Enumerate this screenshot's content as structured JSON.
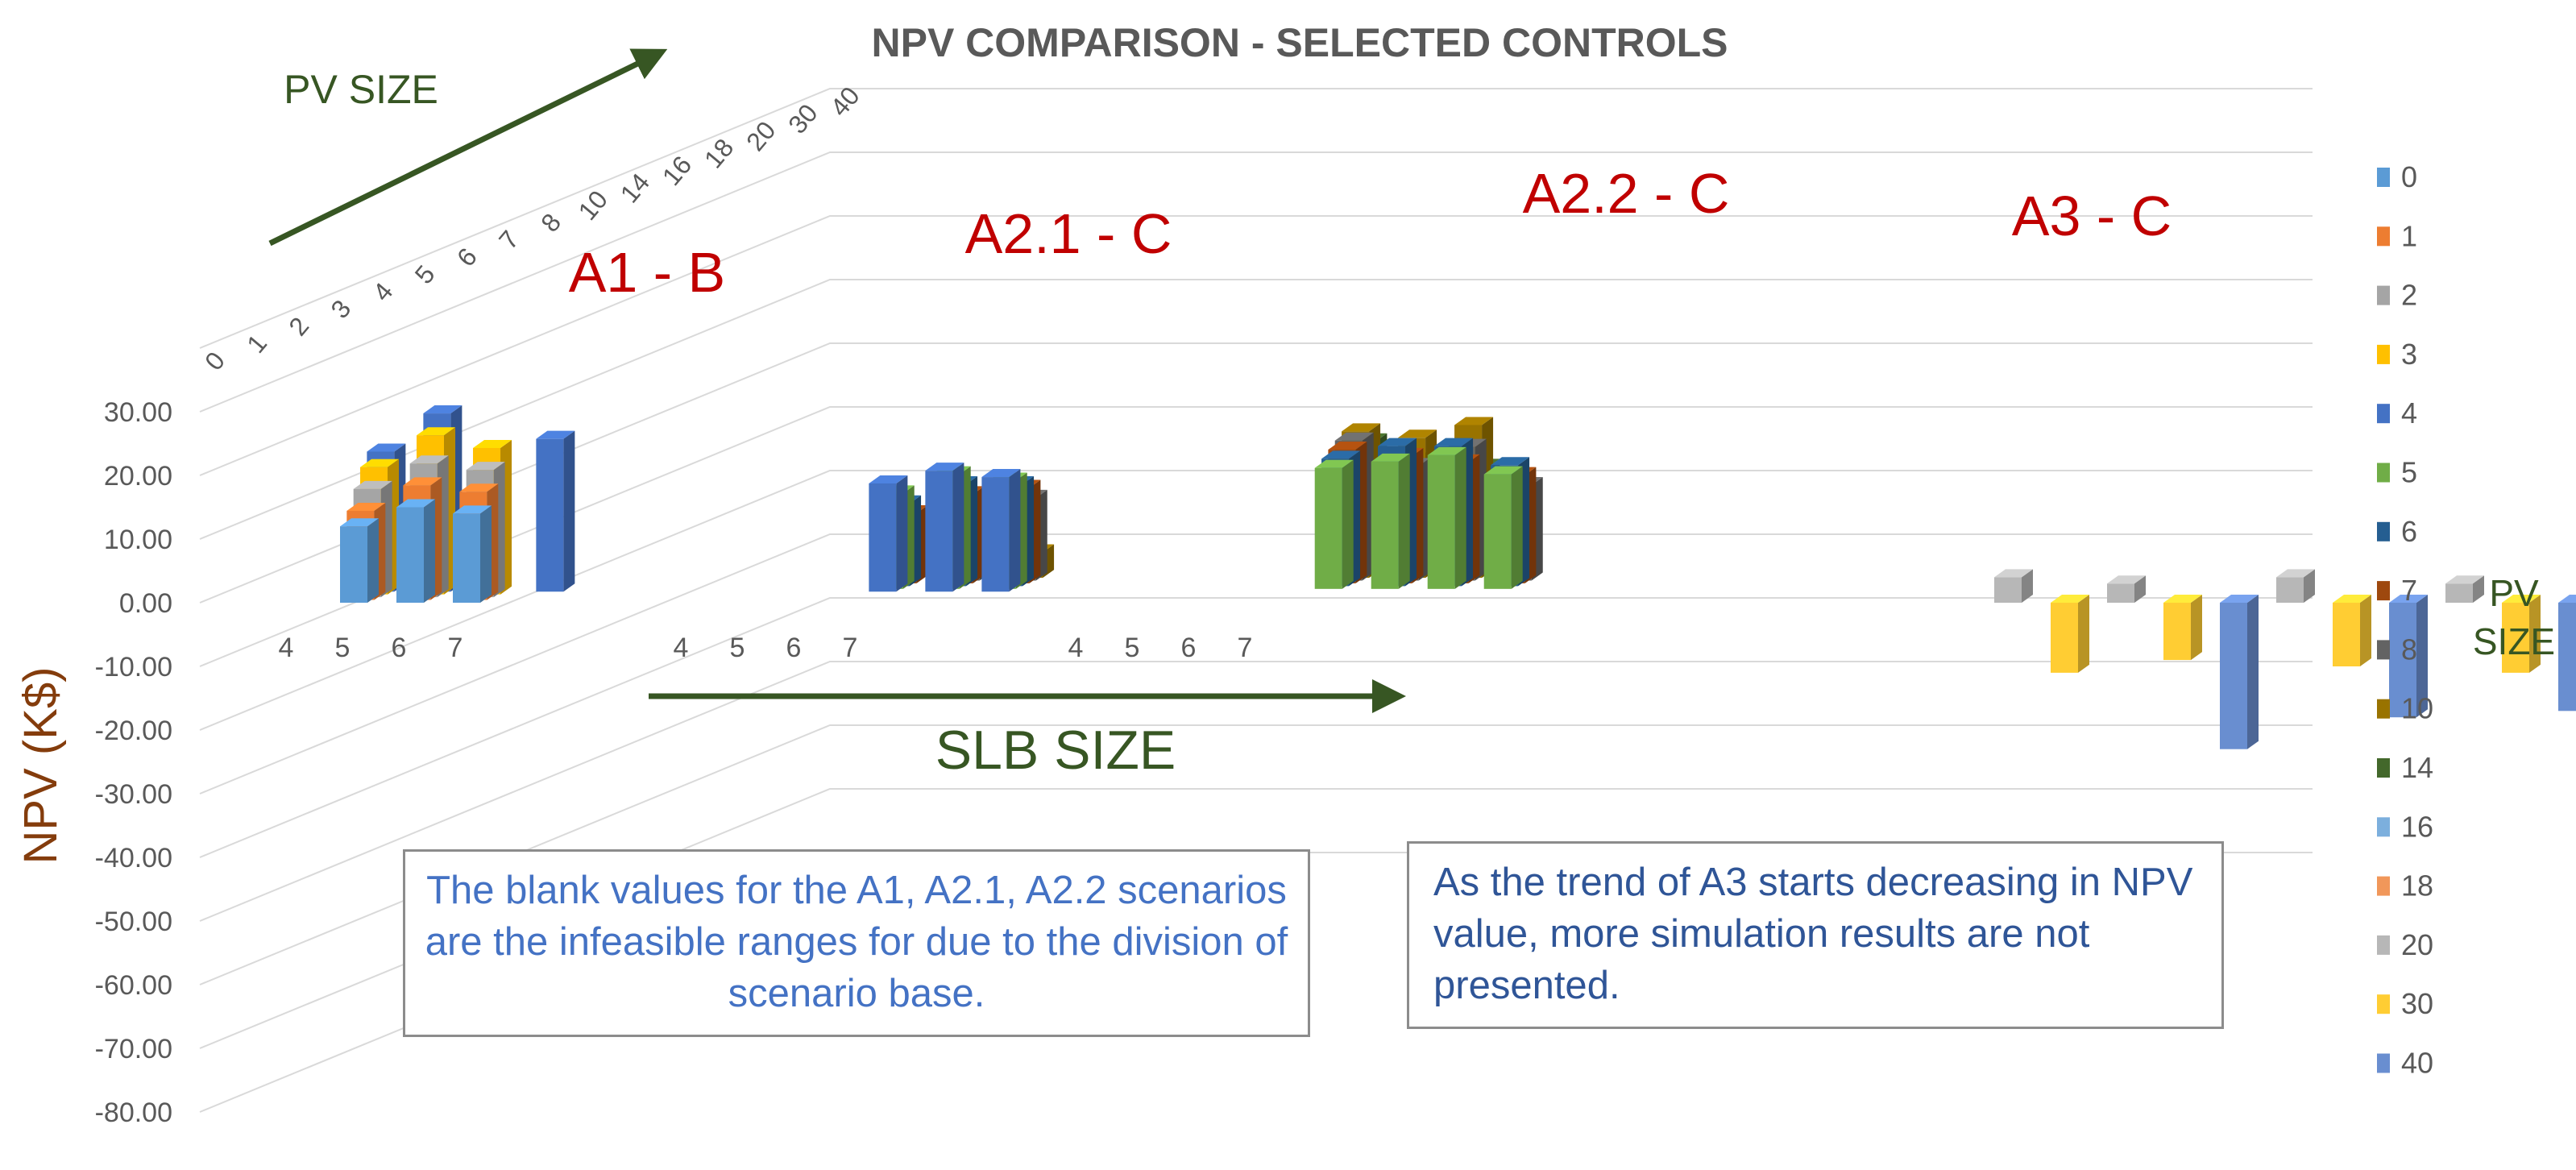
{
  "chart_data": {
    "type": "bar",
    "subtype": "3d-clustered-column",
    "title": "NPV COMPARISON - SELECTED CONTROLS",
    "ylabel": "NPV (K$)",
    "ylim": [
      -80,
      40
    ],
    "yticks": [
      "30.00",
      "20.00",
      "10.00",
      "0.00",
      "-10.00",
      "-20.00",
      "-30.00",
      "-40.00",
      "-50.00",
      "-60.00",
      "-70.00",
      "-80.00"
    ],
    "depth_axis_label": "PV SIZE",
    "depth_ticks": [
      "0",
      "1",
      "2",
      "3",
      "4",
      "5",
      "6",
      "7",
      "8",
      "10",
      "14",
      "16",
      "18",
      "20",
      "30",
      "40"
    ],
    "x_axis_label": "SLB SIZE",
    "legend_title": "PV SIZE",
    "legend_position": "right",
    "colors": {
      "0": "#5b9bd5",
      "1": "#ed7d31",
      "2": "#a5a5a5",
      "3": "#ffc000",
      "4": "#4472c4",
      "5": "#70ad47",
      "6": "#255e91",
      "7": "#9e480e",
      "8": "#636363",
      "10": "#997300",
      "14": "#43682b",
      "16": "#7cafdd",
      "18": "#f1975a",
      "20": "#b7b7b7",
      "30": "#ffcd33",
      "40": "#698ed0"
    },
    "groups": [
      {
        "name": "A1 - B",
        "categories": [
          "4",
          "5",
          "6",
          "7"
        ],
        "bars": [
          {
            "slb": "4",
            "pv": "0",
            "value": 12
          },
          {
            "slb": "4",
            "pv": "1",
            "value": 14
          },
          {
            "slb": "4",
            "pv": "2",
            "value": 17
          },
          {
            "slb": "4",
            "pv": "3",
            "value": 20
          },
          {
            "slb": "4",
            "pv": "4",
            "value": 22
          },
          {
            "slb": "5",
            "pv": "0",
            "value": 15
          },
          {
            "slb": "5",
            "pv": "1",
            "value": 18
          },
          {
            "slb": "5",
            "pv": "2",
            "value": 21
          },
          {
            "slb": "5",
            "pv": "3",
            "value": 25
          },
          {
            "slb": "5",
            "pv": "4",
            "value": 28
          },
          {
            "slb": "6",
            "pv": "0",
            "value": 14
          },
          {
            "slb": "6",
            "pv": "1",
            "value": 17
          },
          {
            "slb": "6",
            "pv": "2",
            "value": 20
          },
          {
            "slb": "6",
            "pv": "3",
            "value": 23
          },
          {
            "slb": "7",
            "pv": "4",
            "value": 24
          }
        ]
      },
      {
        "name": "A2.1 - C",
        "categories": [
          "4",
          "5",
          "6",
          "7"
        ],
        "bars": [
          {
            "slb": "4",
            "pv": "4",
            "value": 17
          },
          {
            "slb": "4",
            "pv": "5",
            "value": 15
          },
          {
            "slb": "4",
            "pv": "6",
            "value": 13
          },
          {
            "slb": "4",
            "pv": "7",
            "value": 11
          },
          {
            "slb": "5",
            "pv": "4",
            "value": 19
          },
          {
            "slb": "5",
            "pv": "5",
            "value": 18
          },
          {
            "slb": "5",
            "pv": "6",
            "value": 16
          },
          {
            "slb": "5",
            "pv": "7",
            "value": 14
          },
          {
            "slb": "5",
            "pv": "8",
            "value": 12
          },
          {
            "slb": "6",
            "pv": "4",
            "value": 18
          },
          {
            "slb": "6",
            "pv": "5",
            "value": 17
          },
          {
            "slb": "6",
            "pv": "6",
            "value": 16
          },
          {
            "slb": "6",
            "pv": "7",
            "value": 15
          },
          {
            "slb": "6",
            "pv": "8",
            "value": 13
          },
          {
            "slb": "6",
            "pv": "10",
            "value": 4
          }
        ]
      },
      {
        "name": "A2.2 - C",
        "categories": [
          "4",
          "5",
          "6",
          "7"
        ],
        "bars": [
          {
            "slb": "4",
            "pv": "5",
            "value": 19
          },
          {
            "slb": "4",
            "pv": "6",
            "value": 20
          },
          {
            "slb": "4",
            "pv": "7",
            "value": 21
          },
          {
            "slb": "4",
            "pv": "8",
            "value": 22
          },
          {
            "slb": "4",
            "pv": "10",
            "value": 23
          },
          {
            "slb": "4",
            "pv": "14",
            "value": 21
          },
          {
            "slb": "4",
            "pv": "16",
            "value": 16
          },
          {
            "slb": "5",
            "pv": "5",
            "value": 20
          },
          {
            "slb": "5",
            "pv": "6",
            "value": 22
          },
          {
            "slb": "5",
            "pv": "7",
            "value": 20
          },
          {
            "slb": "5",
            "pv": "8",
            "value": 18
          },
          {
            "slb": "5",
            "pv": "10",
            "value": 22
          },
          {
            "slb": "5",
            "pv": "14",
            "value": 18
          },
          {
            "slb": "6",
            "pv": "5",
            "value": 21
          },
          {
            "slb": "6",
            "pv": "6",
            "value": 22
          },
          {
            "slb": "6",
            "pv": "7",
            "value": 19
          },
          {
            "slb": "6",
            "pv": "8",
            "value": 21
          },
          {
            "slb": "6",
            "pv": "10",
            "value": 24
          },
          {
            "slb": "6",
            "pv": "14",
            "value": 17
          },
          {
            "slb": "6",
            "pv": "16",
            "value": 14
          },
          {
            "slb": "7",
            "pv": "5",
            "value": 18
          },
          {
            "slb": "7",
            "pv": "6",
            "value": 19
          },
          {
            "slb": "7",
            "pv": "7",
            "value": 17
          },
          {
            "slb": "7",
            "pv": "8",
            "value": 15
          }
        ]
      },
      {
        "name": "A3 - C",
        "categories": [],
        "bars": [
          {
            "pv": "20",
            "value": 4
          },
          {
            "pv": "30",
            "value": -11
          },
          {
            "pv": "20",
            "value": 3
          },
          {
            "pv": "30",
            "value": -9
          },
          {
            "pv": "40",
            "value": -23
          },
          {
            "pv": "20",
            "value": 4
          },
          {
            "pv": "30",
            "value": -10
          },
          {
            "pv": "40",
            "value": -18
          },
          {
            "pv": "20",
            "value": 3
          },
          {
            "pv": "30",
            "value": -11
          },
          {
            "pv": "40",
            "value": -17
          }
        ]
      }
    ]
  },
  "notes": {
    "left": "The blank values for the A1, A2.1, A2.2 scenarios are the infeasible ranges for due to the division of scenario base.",
    "right": "As the trend of A3 starts decreasing in NPV value, more simulation results are not presented."
  }
}
